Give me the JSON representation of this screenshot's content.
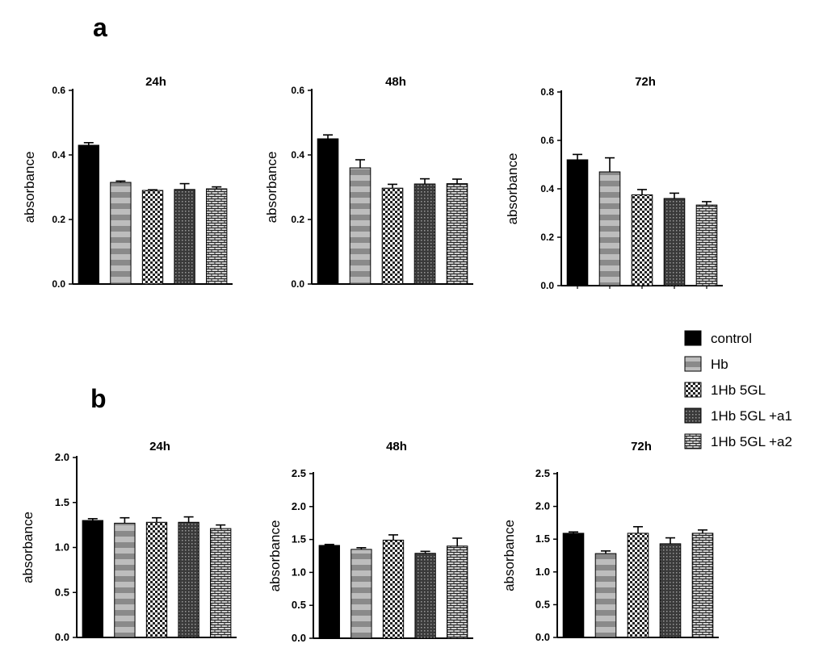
{
  "figure": {
    "panel_a_label": "a",
    "panel_b_label": "b"
  },
  "legend": {
    "entries": [
      "control",
      "Hb",
      "1Hb 5GL",
      "1Hb 5GL +a1",
      "1Hb 5GL +a2"
    ]
  },
  "colors": {
    "control": "#000000",
    "bar_stroke": "#000000",
    "pattern_dark": "#1a1a1a",
    "pattern_light": "#ffffff",
    "stripe_gray": "#8a8a8a"
  },
  "chart_data": [
    {
      "id": "a-24h",
      "panel": "a",
      "type": "bar",
      "title": "24h",
      "xlabel": "",
      "ylabel": "absorbance",
      "categories": [
        "control",
        "Hb",
        "1Hb 5GL",
        "1Hb 5GL +a1",
        "1Hb 5GL +a2"
      ],
      "values": [
        0.43,
        0.315,
        0.29,
        0.293,
        0.295
      ],
      "errors": [
        0.008,
        0.004,
        0.002,
        0.018,
        0.006
      ],
      "ylim": [
        0,
        0.6
      ],
      "yticks": [
        0.0,
        0.2,
        0.4,
        0.6
      ],
      "ytick_labels": [
        "0.0",
        "0.2",
        "0.4",
        "0.6"
      ]
    },
    {
      "id": "a-48h",
      "panel": "a",
      "type": "bar",
      "title": "48h",
      "xlabel": "",
      "ylabel": "absorbance",
      "categories": [
        "control",
        "Hb",
        "1Hb 5GL",
        "1Hb 5GL +a1",
        "1Hb 5GL +a2"
      ],
      "values": [
        0.45,
        0.36,
        0.297,
        0.31,
        0.311
      ],
      "errors": [
        0.012,
        0.025,
        0.012,
        0.016,
        0.014
      ],
      "ylim": [
        0,
        0.6
      ],
      "yticks": [
        0.0,
        0.2,
        0.4,
        0.6
      ],
      "ytick_labels": [
        "0.0",
        "0.2",
        "0.4",
        "0.6"
      ]
    },
    {
      "id": "a-72h",
      "panel": "a",
      "type": "bar",
      "title": "72h",
      "xlabel": "",
      "ylabel": "absorbance",
      "categories": [
        "control",
        "Hb",
        "1Hb 5GL",
        "1Hb 5GL +a1",
        "1Hb 5GL +a2"
      ],
      "values": [
        0.52,
        0.47,
        0.375,
        0.36,
        0.333
      ],
      "errors": [
        0.022,
        0.058,
        0.022,
        0.022,
        0.014
      ],
      "ylim": [
        0,
        0.8
      ],
      "yticks": [
        0.0,
        0.2,
        0.4,
        0.6,
        0.8
      ],
      "ytick_labels": [
        "0.0",
        "0.2",
        "0.4",
        "0.6",
        "0.8"
      ]
    },
    {
      "id": "b-24h",
      "panel": "b",
      "type": "bar",
      "title": "24h",
      "xlabel": "",
      "ylabel": "absorbance",
      "categories": [
        "control",
        "Hb",
        "1Hb 5GL",
        "1Hb 5GL +a1",
        "1Hb 5GL +a2"
      ],
      "values": [
        1.3,
        1.27,
        1.28,
        1.28,
        1.21
      ],
      "errors": [
        0.02,
        0.06,
        0.05,
        0.06,
        0.04
      ],
      "ylim": [
        0,
        2.0
      ],
      "yticks": [
        0.0,
        0.5,
        1.0,
        1.5,
        2.0
      ],
      "ytick_labels": [
        "0.0",
        "0.5",
        "1.0",
        "1.5",
        "2.0"
      ]
    },
    {
      "id": "b-48h",
      "panel": "b",
      "type": "bar",
      "title": "48h",
      "xlabel": "",
      "ylabel": "absorbance",
      "categories": [
        "control",
        "Hb",
        "1Hb 5GL",
        "1Hb 5GL +a1",
        "1Hb 5GL +a2"
      ],
      "values": [
        1.41,
        1.35,
        1.49,
        1.29,
        1.4
      ],
      "errors": [
        0.015,
        0.025,
        0.08,
        0.03,
        0.12
      ],
      "ylim": [
        0,
        2.5
      ],
      "yticks": [
        0.0,
        0.5,
        1.0,
        1.5,
        2.0,
        2.5
      ],
      "ytick_labels": [
        "0.0",
        "0.5",
        "1.0",
        "1.5",
        "2.0",
        "2.5"
      ]
    },
    {
      "id": "b-72h",
      "panel": "b",
      "type": "bar",
      "title": "72h",
      "xlabel": "",
      "ylabel": "absorbance",
      "categories": [
        "control",
        "Hb",
        "1Hb 5GL",
        "1Hb 5GL +a1",
        "1Hb 5GL +a2"
      ],
      "values": [
        1.59,
        1.28,
        1.59,
        1.43,
        1.59
      ],
      "errors": [
        0.02,
        0.04,
        0.1,
        0.09,
        0.05
      ],
      "ylim": [
        0,
        2.5
      ],
      "yticks": [
        0.0,
        0.5,
        1.0,
        1.5,
        2.0,
        2.5
      ],
      "ytick_labels": [
        "0.0",
        "0.5",
        "1.0",
        "1.5",
        "2.0",
        "2.5"
      ]
    }
  ]
}
